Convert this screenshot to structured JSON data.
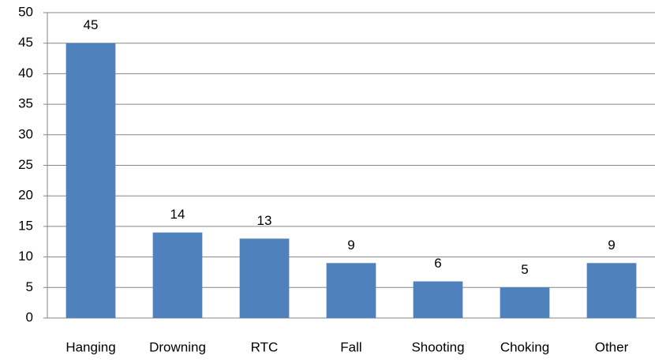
{
  "chart_data": {
    "type": "bar",
    "categories": [
      "Hanging",
      "Drowning",
      "RTC",
      "Fall",
      "Shooting",
      "Choking",
      "Other"
    ],
    "values": [
      45,
      14,
      13,
      9,
      6,
      5,
      9
    ],
    "color": "#4f81bd",
    "ylim": [
      0,
      50
    ],
    "yticks": [
      0,
      5,
      10,
      15,
      20,
      25,
      30,
      35,
      40,
      45,
      50
    ],
    "grid": true
  }
}
